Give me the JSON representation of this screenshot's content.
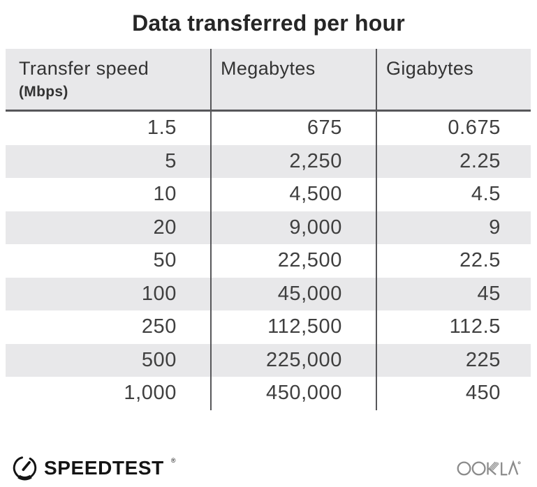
{
  "title": "Data transferred per hour",
  "chart_data": {
    "type": "table",
    "title": "Data transferred per hour",
    "columns": [
      "Transfer speed (Mbps)",
      "Megabytes",
      "Gigabytes"
    ],
    "header": {
      "col1_label": "Transfer speed",
      "col1_sublabel": "(Mbps)",
      "col2_label": "Megabytes",
      "col3_label": "Gigabytes"
    },
    "rows": [
      [
        "1.5",
        "675",
        "0.675"
      ],
      [
        "5",
        "2,250",
        "2.25"
      ],
      [
        "10",
        "4,500",
        "4.5"
      ],
      [
        "20",
        "9,000",
        "9"
      ],
      [
        "50",
        "22,500",
        "22.5"
      ],
      [
        "100",
        "45,000",
        "45"
      ],
      [
        "250",
        "112,500",
        "112.5"
      ],
      [
        "500",
        "225,000",
        "225"
      ],
      [
        "1,000",
        "450,000",
        "450"
      ]
    ]
  },
  "footer": {
    "speedtest_label": "SPEEDTEST",
    "registered_mark": "®",
    "ookla_label": "OOKLA"
  },
  "colors": {
    "page_bg": "#ffffff",
    "title_color": "#262626",
    "header_bg": "#e8e8ea",
    "row_alt_bg": "#e8e8ea",
    "line_color": "#57575a",
    "cell_color": "#3f3f3f",
    "speedtest_color": "#141414",
    "ookla_color": "#8b8b8b"
  }
}
